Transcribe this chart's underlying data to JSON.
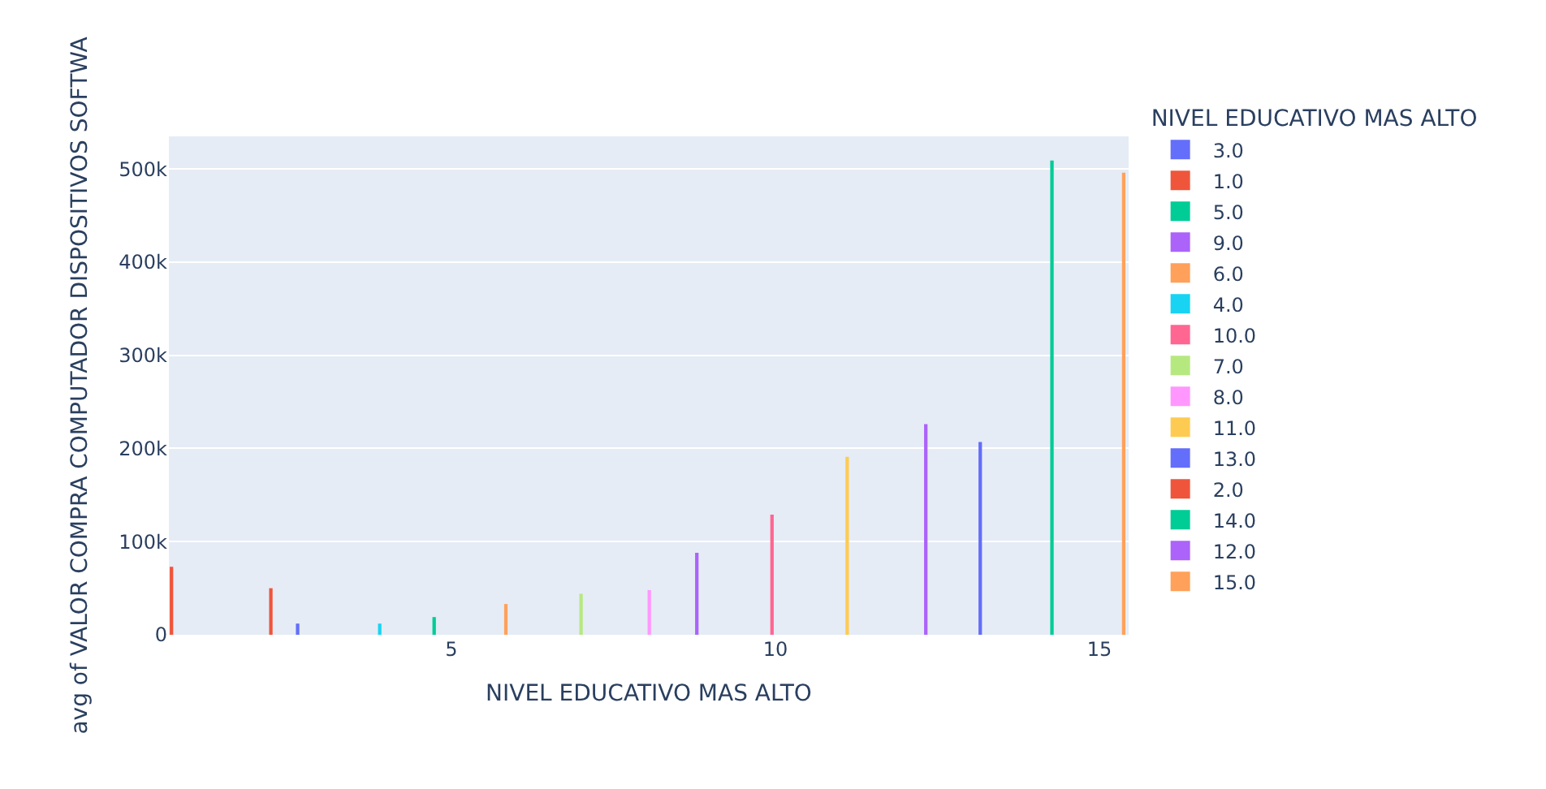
{
  "chart_data": {
    "type": "bar",
    "xlabel": "NIVEL EDUCATIVO MAS ALTO",
    "ylabel": "avg of VALOR COMPRA COMPUTADOR DISPOSITIVOS SOFTWA",
    "legend_title": "NIVEL EDUCATIVO MAS ALTO",
    "xlim": [
      0.64,
      15.45
    ],
    "xticks": [
      5,
      10,
      15
    ],
    "ylim": [
      0,
      535000
    ],
    "yticks": [
      {
        "value": 0,
        "label": "0"
      },
      {
        "value": 100000,
        "label": "100k"
      },
      {
        "value": 200000,
        "label": "200k"
      },
      {
        "value": 300000,
        "label": "300k"
      },
      {
        "value": 400000,
        "label": "400k"
      },
      {
        "value": 500000,
        "label": "500k"
      }
    ],
    "grid": "y",
    "legend": "top right",
    "series": [
      {
        "name": "3.0",
        "color": "#636efa",
        "x": [
          3
        ],
        "values": [
          12000
        ]
      },
      {
        "name": "1.0",
        "color": "#ef553b",
        "x": [
          1
        ],
        "values": [
          73000
        ]
      },
      {
        "name": "5.0",
        "color": "#00cc96",
        "x": [
          5
        ],
        "values": [
          19000
        ]
      },
      {
        "name": "9.0",
        "color": "#ab63fa",
        "x": [
          9
        ],
        "values": [
          88000
        ]
      },
      {
        "name": "6.0",
        "color": "#ffa15a",
        "x": [
          6
        ],
        "values": [
          33000
        ]
      },
      {
        "name": "4.0",
        "color": "#19d3f3",
        "x": [
          4
        ],
        "values": [
          12000
        ]
      },
      {
        "name": "10.0",
        "color": "#ff6692",
        "x": [
          10
        ],
        "values": [
          129000
        ]
      },
      {
        "name": "7.0",
        "color": "#b6e880",
        "x": [
          7
        ],
        "values": [
          44000
        ]
      },
      {
        "name": "8.0",
        "color": "#ff97ff",
        "x": [
          8
        ],
        "values": [
          48000
        ]
      },
      {
        "name": "11.0",
        "color": "#fecb52",
        "x": [
          11
        ],
        "values": [
          191000
        ]
      },
      {
        "name": "13.0",
        "color": "#636efa",
        "x": [
          13
        ],
        "values": [
          207000
        ]
      },
      {
        "name": "2.0",
        "color": "#ef553b",
        "x": [
          2
        ],
        "values": [
          50000
        ]
      },
      {
        "name": "14.0",
        "color": "#00cc96",
        "x": [
          14
        ],
        "values": [
          509000
        ]
      },
      {
        "name": "12.0",
        "color": "#ab63fa",
        "x": [
          12
        ],
        "values": [
          226000
        ]
      },
      {
        "name": "15.0",
        "color": "#ffa15a",
        "x": [
          15
        ],
        "values": [
          496000
        ]
      }
    ]
  }
}
